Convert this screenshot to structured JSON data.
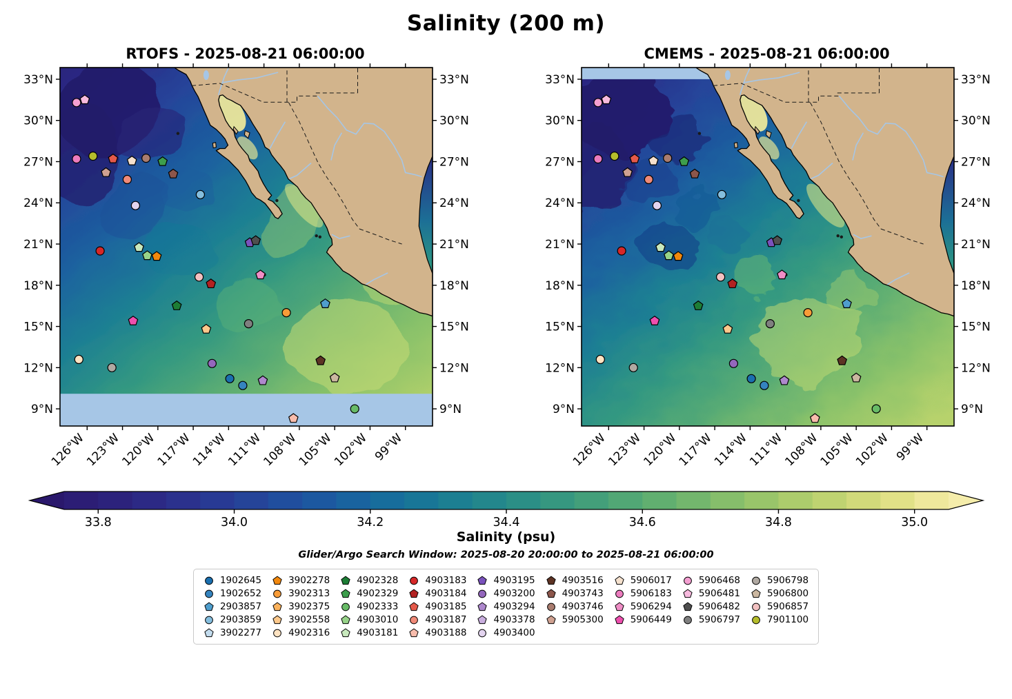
{
  "title": "Salinity (200 m)",
  "panels": [
    {
      "name": "RTOFS",
      "title": "RTOFS - 2025-08-21 06:00:00"
    },
    {
      "name": "CMEMS",
      "title": "CMEMS - 2025-08-21 06:00:00"
    }
  ],
  "axes": {
    "lon_tick_labels": [
      "126°W",
      "123°W",
      "120°W",
      "117°W",
      "114°W",
      "111°W",
      "108°W",
      "105°W",
      "102°W",
      "99°W"
    ],
    "lon_tick_values": [
      -126,
      -123,
      -120,
      -117,
      -114,
      -111,
      -108,
      -105,
      -102,
      -99
    ],
    "lat_tick_labels": [
      "9°N",
      "12°N",
      "15°N",
      "18°N",
      "21°N",
      "24°N",
      "27°N",
      "30°N",
      "33°N"
    ],
    "lat_tick_values": [
      9,
      12,
      15,
      18,
      21,
      24,
      27,
      30,
      33
    ]
  },
  "colorbar": {
    "label": "Salinity (psu)",
    "tick_labels": [
      "33.8",
      "34.0",
      "34.2",
      "34.4",
      "34.6",
      "34.8",
      "35.0"
    ],
    "tick_values": [
      33.8,
      34.0,
      34.2,
      34.4,
      34.6,
      34.8,
      35.0
    ]
  },
  "search_window": "Glider/Argo Search Window: 2025-08-20 20:00:00 to 2025-08-21 06:00:00",
  "legend": {
    "entries": [
      {
        "id": "1902645",
        "shape": "circle",
        "color": "#1a6faf"
      },
      {
        "id": "1902652",
        "shape": "circle",
        "color": "#3584bf"
      },
      {
        "id": "2903857",
        "shape": "pentagon",
        "color": "#4f9ecd"
      },
      {
        "id": "2903859",
        "shape": "circle",
        "color": "#85bede"
      },
      {
        "id": "3902277",
        "shape": "pentagon",
        "color": "#c3dcee"
      },
      {
        "id": "3902278",
        "shape": "pentagon",
        "color": "#f2880d"
      },
      {
        "id": "3902313",
        "shape": "circle",
        "color": "#f89c38"
      },
      {
        "id": "3902375",
        "shape": "pentagon",
        "color": "#fbb25c"
      },
      {
        "id": "3902558",
        "shape": "pentagon",
        "color": "#fdc98c"
      },
      {
        "id": "4902316",
        "shape": "circle",
        "color": "#fee3c2"
      },
      {
        "id": "4902328",
        "shape": "pentagon",
        "color": "#1d7d35"
      },
      {
        "id": "4902329",
        "shape": "pentagon",
        "color": "#3d9e4c"
      },
      {
        "id": "4902333",
        "shape": "circle",
        "color": "#68bb67"
      },
      {
        "id": "4903010",
        "shape": "pentagon",
        "color": "#97d389"
      },
      {
        "id": "4903181",
        "shape": "pentagon",
        "color": "#c8e9bd"
      },
      {
        "id": "4903183",
        "shape": "circle",
        "color": "#d62728"
      },
      {
        "id": "4903184",
        "shape": "pentagon",
        "color": "#b22222"
      },
      {
        "id": "4903185",
        "shape": "pentagon",
        "color": "#e4594a"
      },
      {
        "id": "4903187",
        "shape": "circle",
        "color": "#f08a78"
      },
      {
        "id": "4903188",
        "shape": "pentagon",
        "color": "#f8bcac"
      },
      {
        "id": "4903195",
        "shape": "pentagon",
        "color": "#7a52bc"
      },
      {
        "id": "4903200",
        "shape": "circle",
        "color": "#9467bd"
      },
      {
        "id": "4903294",
        "shape": "pentagon",
        "color": "#ae88cd"
      },
      {
        "id": "4903378",
        "shape": "pentagon",
        "color": "#c9aede"
      },
      {
        "id": "4903400",
        "shape": "circle",
        "color": "#e3d4ef"
      },
      {
        "id": "4903516",
        "shape": "pentagon",
        "color": "#5d3324"
      },
      {
        "id": "4903743",
        "shape": "pentagon",
        "color": "#8c564b"
      },
      {
        "id": "4903746",
        "shape": "circle",
        "color": "#a97c6f"
      },
      {
        "id": "5905300",
        "shape": "pentagon",
        "color": "#cfa191"
      },
      {
        "id": "5906017",
        "shape": "pentagon",
        "color": "#f5e1ce"
      },
      {
        "id": "5906183",
        "shape": "circle",
        "color": "#ec7cbe"
      },
      {
        "id": "5906294",
        "shape": "pentagon",
        "color": "#ef8ec6"
      },
      {
        "id": "5906449",
        "shape": "pentagon",
        "color": "#ee4fae"
      },
      {
        "id": "5906468",
        "shape": "circle",
        "color": "#f49fd1"
      },
      {
        "id": "5906481",
        "shape": "pentagon",
        "color": "#f7bade"
      },
      {
        "id": "5906482",
        "shape": "pentagon",
        "color": "#4f4f4f"
      },
      {
        "id": "5906797",
        "shape": "circle",
        "color": "#7f7f7f"
      },
      {
        "id": "5906798",
        "shape": "circle",
        "color": "#b0a9a2"
      },
      {
        "id": "5906800",
        "shape": "pentagon",
        "color": "#cbb7a0"
      },
      {
        "id": "5906857",
        "shape": "circle",
        "color": "#f2c1c1"
      },
      {
        "id": "7901100",
        "shape": "circle",
        "color": "#b5bd2c"
      }
    ]
  },
  "chart_data": {
    "type": "heatmap",
    "title": "Salinity (200 m)",
    "variable": "Salinity (psu)",
    "depth": "200 m",
    "panels": [
      "RTOFS - 2025-08-21 06:00:00",
      "CMEMS - 2025-08-21 06:00:00"
    ],
    "subtitle": "Glider/Argo Search Window: 2025-08-20 20:00:00 to 2025-08-21 06:00:00",
    "lon_range": [
      -128.3,
      -96.7
    ],
    "lat_range": [
      7.75,
      33.85
    ],
    "colorbar_range": [
      33.7,
      35.05
    ],
    "colorbar_ticks": [
      33.8,
      34.0,
      34.2,
      34.4,
      34.6,
      34.8,
      35.0
    ],
    "color_stops": [
      [
        33.7,
        "#2a186c"
      ],
      [
        33.8,
        "#2c1e78"
      ],
      [
        33.9,
        "#2c2d8a"
      ],
      [
        34.0,
        "#273f97"
      ],
      [
        34.1,
        "#1e53a0"
      ],
      [
        34.2,
        "#17689e"
      ],
      [
        34.3,
        "#197b95"
      ],
      [
        34.4,
        "#268b89"
      ],
      [
        34.5,
        "#3c9b7d"
      ],
      [
        34.6,
        "#58ab72"
      ],
      [
        34.7,
        "#7cba6b"
      ],
      [
        34.8,
        "#a3c96a"
      ],
      [
        34.9,
        "#c9d773"
      ],
      [
        35.0,
        "#e9e48e"
      ],
      [
        35.05,
        "#f5edab"
      ]
    ],
    "float_markers": [
      {
        "id": "5906468",
        "lon": -126.9,
        "lat": 31.3
      },
      {
        "id": "5906481",
        "lon": -126.2,
        "lat": 31.5
      },
      {
        "id": "5906183",
        "lon": -126.9,
        "lat": 27.2
      },
      {
        "id": "7901100",
        "lon": -125.5,
        "lat": 27.4
      },
      {
        "id": "4903185",
        "lon": -123.8,
        "lat": 27.2
      },
      {
        "id": "5906017",
        "lon": -122.2,
        "lat": 27.05
      },
      {
        "id": "4903746",
        "lon": -121.0,
        "lat": 27.25
      },
      {
        "id": "4902329",
        "lon": -119.6,
        "lat": 27.0
      },
      {
        "id": "5905300",
        "lon": -124.4,
        "lat": 26.2
      },
      {
        "id": "4903187",
        "lon": -122.6,
        "lat": 25.7
      },
      {
        "id": "4903743",
        "lon": -118.7,
        "lat": 26.1
      },
      {
        "id": "2903859",
        "lon": -116.4,
        "lat": 24.6
      },
      {
        "id": "4903400",
        "lon": -121.9,
        "lat": 23.8
      },
      {
        "id": "4903183",
        "lon": -124.9,
        "lat": 20.5
      },
      {
        "id": "4903181",
        "lon": -121.6,
        "lat": 20.75
      },
      {
        "id": "4903010",
        "lon": -120.9,
        "lat": 20.15
      },
      {
        "id": "3902278",
        "lon": -120.1,
        "lat": 20.1
      },
      {
        "id": "4903195",
        "lon": -112.2,
        "lat": 21.1
      },
      {
        "id": "5906482",
        "lon": -111.7,
        "lat": 21.25
      },
      {
        "id": "5906857",
        "lon": -116.5,
        "lat": 18.6
      },
      {
        "id": "4903184",
        "lon": -115.5,
        "lat": 18.1
      },
      {
        "id": "5906294",
        "lon": -111.3,
        "lat": 18.75
      },
      {
        "id": "4902328",
        "lon": -118.4,
        "lat": 16.5
      },
      {
        "id": "2903857",
        "lon": -105.8,
        "lat": 16.65
      },
      {
        "id": "5906449",
        "lon": -122.1,
        "lat": 15.4
      },
      {
        "id": "3902558",
        "lon": -115.9,
        "lat": 14.8
      },
      {
        "id": "5906797",
        "lon": -112.3,
        "lat": 15.2
      },
      {
        "id": "3902313",
        "lon": -109.1,
        "lat": 16.0
      },
      {
        "id": "4902316",
        "lon": -126.7,
        "lat": 12.6
      },
      {
        "id": "5906798",
        "lon": -123.9,
        "lat": 12.0
      },
      {
        "id": "4903200",
        "lon": -115.4,
        "lat": 12.3
      },
      {
        "id": "4903516",
        "lon": -106.2,
        "lat": 12.5
      },
      {
        "id": "1902645",
        "lon": -113.9,
        "lat": 11.2
      },
      {
        "id": "1902652",
        "lon": -112.8,
        "lat": 10.7
      },
      {
        "id": "4903294",
        "lon": -111.1,
        "lat": 11.05
      },
      {
        "id": "5906800",
        "lon": -105.0,
        "lat": 11.25
      },
      {
        "id": "4903188",
        "lon": -108.5,
        "lat": 8.3
      },
      {
        "id": "4902333",
        "lon": -103.3,
        "lat": 9.0
      }
    ]
  }
}
